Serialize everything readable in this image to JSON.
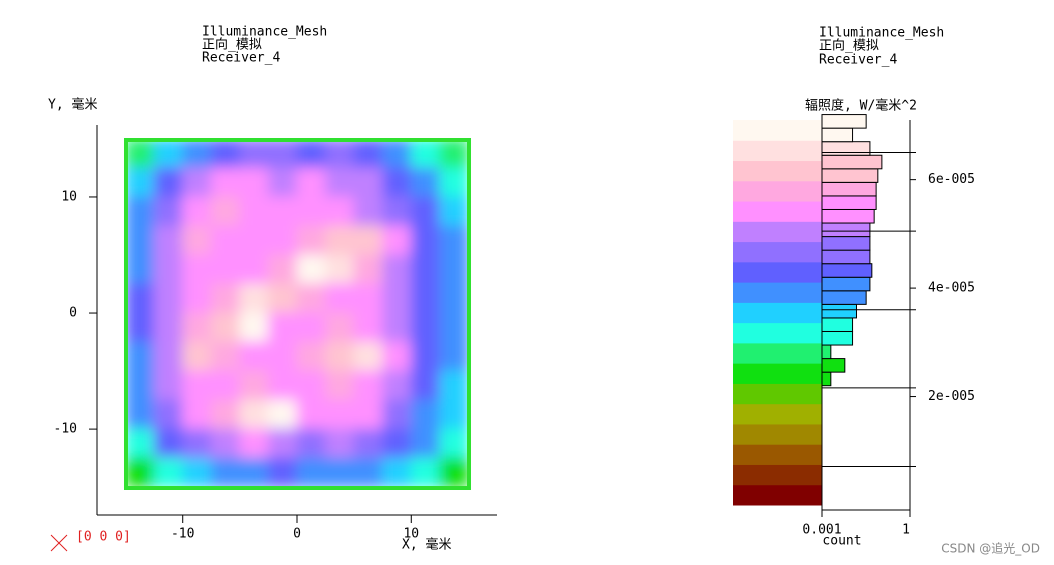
{
  "chart_data": [
    {
      "type": "heatmap",
      "title": "Illuminance_Mesh",
      "subtitles": [
        "正向_模拟",
        "Receiver_4"
      ],
      "xlabel": "X, 毫米",
      "ylabel": "Y, 毫米",
      "origin_label": "[0 0 0]",
      "xlim": [
        -17.5,
        17.5
      ],
      "ylim": [
        -17.4,
        16.2
      ],
      "xticks": [
        -10,
        0,
        10
      ],
      "yticks": [
        -10,
        0,
        10
      ],
      "x": [
        -13.75,
        -11.25,
        -8.75,
        -6.25,
        -3.75,
        -1.25,
        1.25,
        3.75,
        6.25,
        8.75,
        11.25,
        13.75
      ],
      "y": [
        13.75,
        11.25,
        8.75,
        6.25,
        3.75,
        1.25,
        -1.25,
        -3.75,
        -6.25,
        -8.75,
        -11.25,
        -13.75
      ],
      "values": [
        [
          2.8e-05,
          3.4e-05,
          4e-05,
          4.4e-05,
          4.6e-05,
          4.5e-05,
          4.4e-05,
          4.6e-05,
          4.4e-05,
          4e-05,
          3.2e-05,
          2.8e-05
        ],
        [
          3.4e-05,
          4.2e-05,
          5e-05,
          5.6e-05,
          5.4e-05,
          5.2e-05,
          5.4e-05,
          5.2e-05,
          5e-05,
          4.4e-05,
          3.8e-05,
          3.2e-05
        ],
        [
          3.8e-05,
          4.8e-05,
          5.6e-05,
          5.8e-05,
          5.6e-05,
          5.4e-05,
          5.6e-05,
          5.4e-05,
          5.2e-05,
          4.8e-05,
          4.2e-05,
          3.6e-05
        ],
        [
          4e-05,
          5e-05,
          5.8e-05,
          5.6e-05,
          5.4e-05,
          5.6e-05,
          5.8e-05,
          6e-05,
          6.2e-05,
          5.4e-05,
          4.4e-05,
          3.8e-05
        ],
        [
          4e-05,
          5.2e-05,
          5.6e-05,
          5.4e-05,
          5.6e-05,
          5.8e-05,
          6.8e-05,
          6.6e-05,
          5.8e-05,
          5.2e-05,
          4.4e-05,
          3.8e-05
        ],
        [
          4.2e-05,
          5.2e-05,
          5.6e-05,
          5.8e-05,
          6.6e-05,
          6e-05,
          5.8e-05,
          5.6e-05,
          5.4e-05,
          5e-05,
          4.2e-05,
          3.8e-05
        ],
        [
          4.2e-05,
          5.2e-05,
          5.8e-05,
          6.2e-05,
          6.8e-05,
          5.6e-05,
          5.4e-05,
          5.8e-05,
          5.6e-05,
          5.2e-05,
          4.4e-05,
          3.8e-05
        ],
        [
          4e-05,
          5e-05,
          6e-05,
          5.8e-05,
          5.6e-05,
          5.6e-05,
          5.8e-05,
          6.2e-05,
          6.4e-05,
          5.4e-05,
          4.4e-05,
          3.8e-05
        ],
        [
          4e-05,
          5e-05,
          5.6e-05,
          5.4e-05,
          5.8e-05,
          5.6e-05,
          5.6e-05,
          5.8e-05,
          5.6e-05,
          5.2e-05,
          4.2e-05,
          3.6e-05
        ],
        [
          3.8e-05,
          4.6e-05,
          5.4e-05,
          5.8e-05,
          6.6e-05,
          6.8e-05,
          5.4e-05,
          5.6e-05,
          5.4e-05,
          4.8e-05,
          4e-05,
          3.4e-05
        ],
        [
          3.2e-05,
          4.2e-05,
          4.8e-05,
          5.2e-05,
          5.4e-05,
          5e-05,
          4.8e-05,
          5e-05,
          4.8e-05,
          4.2e-05,
          3.8e-05,
          3.2e-05
        ],
        [
          2.4e-05,
          3.2e-05,
          3.6e-05,
          3.8e-05,
          4e-05,
          4.2e-05,
          3.8e-05,
          4e-05,
          3.8e-05,
          3.6e-05,
          3e-05,
          2.4e-05
        ]
      ]
    },
    {
      "type": "colorbar-histogram",
      "title": "Illuminance_Mesh",
      "subtitles": [
        "正向_模拟",
        "Receiver_4"
      ],
      "ylabel": "辐照度, W/毫米^2",
      "xlabel": "count",
      "xscale": "log",
      "ylim": [
        0,
        7.1e-05
      ],
      "yticks": [
        {
          "value": 2e-05,
          "label": "2e-005"
        },
        {
          "value": 4e-05,
          "label": "4e-005"
        },
        {
          "value": 6e-05,
          "label": "6e-005"
        }
      ],
      "xlim": [
        0.001,
        1
      ],
      "xticks": [
        {
          "value": 0.001,
          "label": "0.001"
        },
        1
      ],
      "colors": [
        "#800000",
        "#8b2c00",
        "#9a5800",
        "#a08800",
        "#a0b000",
        "#60c800",
        "#10e010",
        "#20f070",
        "#20ffe0",
        "#20d0ff",
        "#4090ff",
        "#6060ff",
        "#9070ff",
        "#c080ff",
        "#ff90ff",
        "#ffa8e0",
        "#ffc4d0",
        "#ffe0e0",
        "#fff8f0"
      ],
      "bins": [
        2.2e-05,
        2.45e-05,
        2.7e-05,
        2.95e-05,
        3.2e-05,
        3.45e-05,
        3.7e-05,
        3.95e-05,
        4.2e-05,
        4.45e-05,
        4.7e-05,
        4.95e-05,
        5.2e-05,
        5.45e-05,
        5.7e-05,
        5.95e-05,
        6.2e-05,
        6.45e-05,
        6.7e-05,
        6.95e-05,
        7.2e-05
      ],
      "counts": [
        0.002,
        0.006,
        0.002,
        0.011,
        0.011,
        0.015,
        0.032,
        0.043,
        0.05,
        0.043,
        0.043,
        0.043,
        0.06,
        0.07,
        0.07,
        0.08,
        0.11,
        0.043,
        0.011,
        0.032
      ],
      "levels": [
        7.1e-06,
        2.16e-05,
        3.6e-05,
        5.05e-05,
        6.5e-05
      ]
    }
  ],
  "watermark": "CSDN @追光_OD"
}
